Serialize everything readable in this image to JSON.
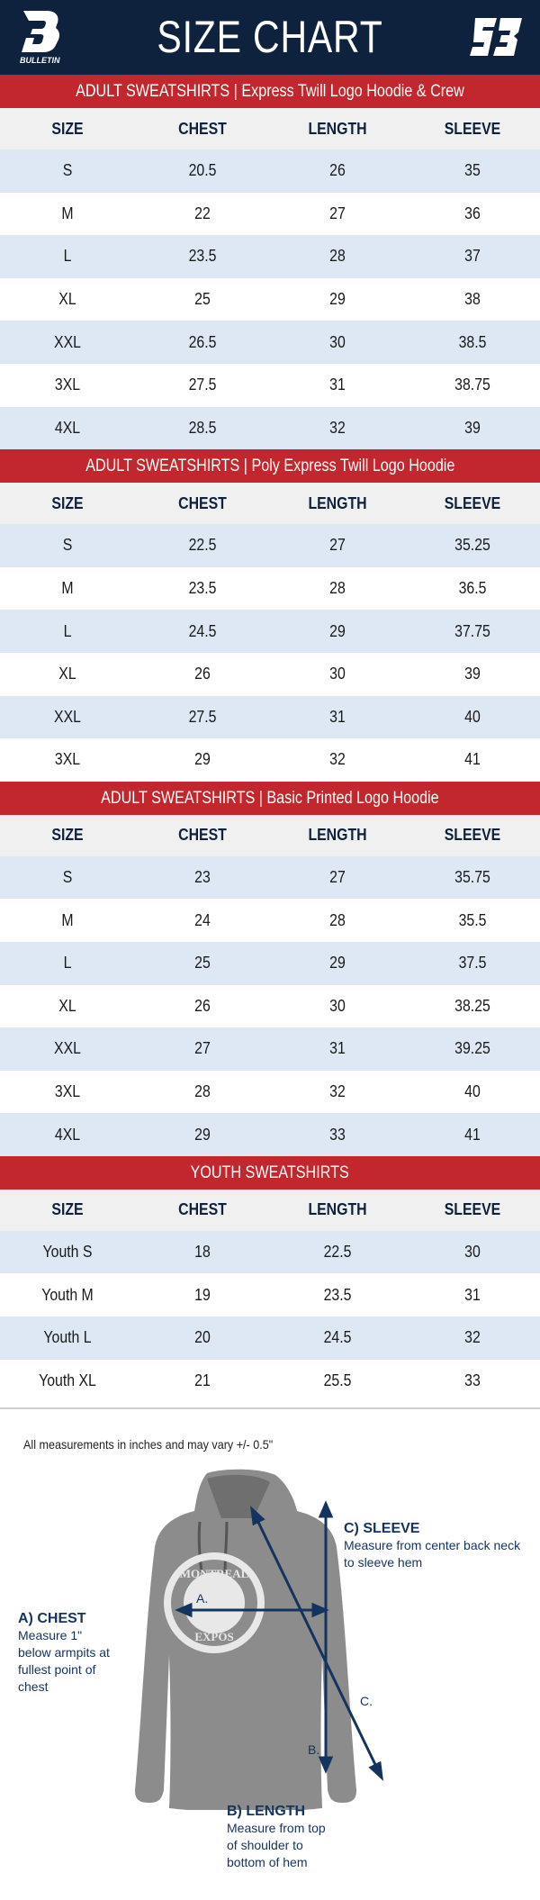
{
  "header": {
    "title": "SIZE CHART",
    "brand_left": "BULLETIN",
    "brand_right": "SB"
  },
  "colors": {
    "navy": "#0e213d",
    "red": "#c1272d",
    "row_alt": "#dde8f4",
    "header_row": "#f0f0f0"
  },
  "columns": [
    "SIZE",
    "CHEST",
    "LENGTH",
    "SLEEVE"
  ],
  "sections": [
    {
      "title": "ADULT SWEATSHIRTS | Express Twill Logo Hoodie & Crew",
      "rows": [
        [
          "S",
          "20.5",
          "26",
          "35"
        ],
        [
          "M",
          "22",
          "27",
          "36"
        ],
        [
          "L",
          "23.5",
          "28",
          "37"
        ],
        [
          "XL",
          "25",
          "29",
          "38"
        ],
        [
          "XXL",
          "26.5",
          "30",
          "38.5"
        ],
        [
          "3XL",
          "27.5",
          "31",
          "38.75"
        ],
        [
          "4XL",
          "28.5",
          "32",
          "39"
        ]
      ]
    },
    {
      "title": "ADULT SWEATSHIRTS | Poly Express Twill Logo Hoodie",
      "rows": [
        [
          "S",
          "22.5",
          "27",
          "35.25"
        ],
        [
          "M",
          "23.5",
          "28",
          "36.5"
        ],
        [
          "L",
          "24.5",
          "29",
          "37.75"
        ],
        [
          "XL",
          "26",
          "30",
          "39"
        ],
        [
          "XXL",
          "27.5",
          "31",
          "40"
        ],
        [
          "3XL",
          "29",
          "32",
          "41"
        ]
      ]
    },
    {
      "title": "ADULT SWEATSHIRTS | Basic Printed Logo Hoodie",
      "rows": [
        [
          "S",
          "23",
          "27",
          "35.75"
        ],
        [
          "M",
          "24",
          "28",
          "35.5"
        ],
        [
          "L",
          "25",
          "29",
          "37.5"
        ],
        [
          "XL",
          "26",
          "30",
          "38.25"
        ],
        [
          "XXL",
          "27",
          "31",
          "39.25"
        ],
        [
          "3XL",
          "28",
          "32",
          "40"
        ],
        [
          "4XL",
          "29",
          "33",
          "41"
        ]
      ]
    },
    {
      "title": "YOUTH SWEATSHIRTS",
      "rows": [
        [
          "Youth S",
          "18",
          "22.5",
          "30"
        ],
        [
          "Youth M",
          "19",
          "23.5",
          "31"
        ],
        [
          "Youth L",
          "20",
          "24.5",
          "32"
        ],
        [
          "Youth XL",
          "21",
          "25.5",
          "33"
        ]
      ]
    }
  ],
  "footer": {
    "note": "All measurements in inches and may vary +/- 0.5\"",
    "chest": {
      "title": "A) CHEST",
      "desc": "Measure 1\" below armpits at fullest point of chest",
      "marker": "A."
    },
    "length": {
      "title": "B) LENGTH",
      "desc": "Measure from top of shoulder to bottom of hem",
      "marker": "B."
    },
    "sleeve": {
      "title": "C) SLEEVE",
      "desc": "Measure from center back neck to sleeve hem",
      "marker": "C."
    },
    "logo_text": [
      "MONTREAL",
      "EXPOS"
    ]
  }
}
